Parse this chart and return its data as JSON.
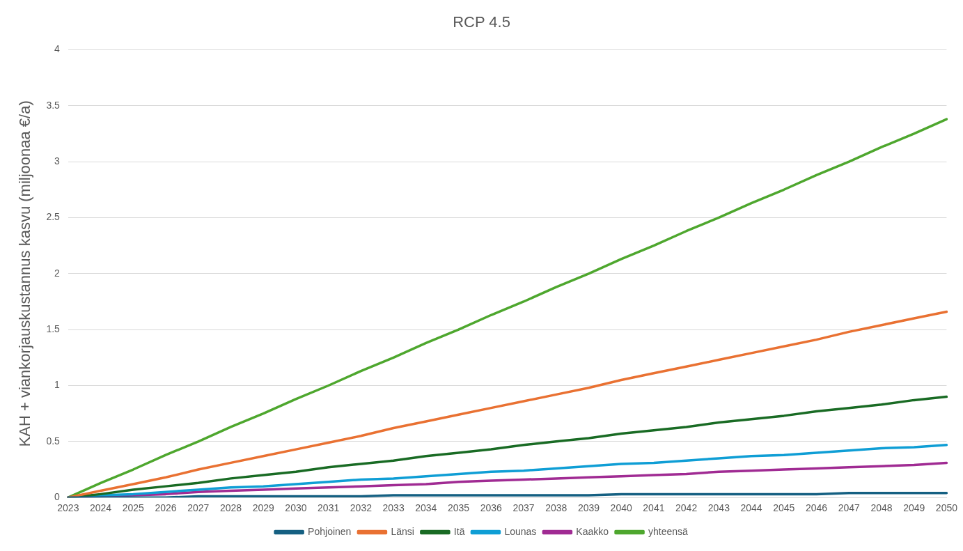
{
  "chart_data": {
    "type": "line",
    "title": "RCP 4.5",
    "ylabel": "KAH + viankorjauskustannus kasvu (miljoonaa €/a)",
    "categories": [
      "2023",
      "2024",
      "2025",
      "2026",
      "2027",
      "2028",
      "2029",
      "2030",
      "2031",
      "2032",
      "2033",
      "2034",
      "2035",
      "2036",
      "2037",
      "2038",
      "2039",
      "2040",
      "2041",
      "2042",
      "2043",
      "2044",
      "2045",
      "2046",
      "2047",
      "2048",
      "2049",
      "2050"
    ],
    "ylim": [
      0,
      4
    ],
    "yticks": [
      0,
      0.5,
      1,
      1.5,
      2,
      2.5,
      3,
      3.5,
      4
    ],
    "grid": "y",
    "legend": "bottom",
    "marker": "none",
    "line_style": "solid",
    "series": [
      {
        "name": "Pohjoinen",
        "color": "#156082",
        "values": [
          0,
          0,
          0,
          0,
          0.01,
          0.01,
          0.01,
          0.01,
          0.01,
          0.01,
          0.02,
          0.02,
          0.02,
          0.02,
          0.02,
          0.02,
          0.02,
          0.03,
          0.03,
          0.03,
          0.03,
          0.03,
          0.03,
          0.03,
          0.04,
          0.04,
          0.04,
          0.04
        ]
      },
      {
        "name": "Länsi",
        "color": "#e97132",
        "values": [
          0,
          0.06,
          0.12,
          0.18,
          0.25,
          0.31,
          0.37,
          0.43,
          0.49,
          0.55,
          0.62,
          0.68,
          0.74,
          0.8,
          0.86,
          0.92,
          0.98,
          1.05,
          1.11,
          1.17,
          1.23,
          1.29,
          1.35,
          1.41,
          1.48,
          1.54,
          1.6,
          1.66
        ]
      },
      {
        "name": "Itä",
        "color": "#196b24",
        "values": [
          0,
          0.03,
          0.07,
          0.1,
          0.13,
          0.17,
          0.2,
          0.23,
          0.27,
          0.3,
          0.33,
          0.37,
          0.4,
          0.43,
          0.47,
          0.5,
          0.53,
          0.57,
          0.6,
          0.63,
          0.67,
          0.7,
          0.73,
          0.77,
          0.8,
          0.83,
          0.87,
          0.9
        ]
      },
      {
        "name": "Lounas",
        "color": "#0f9ed5",
        "values": [
          0,
          0.02,
          0.03,
          0.05,
          0.07,
          0.09,
          0.1,
          0.12,
          0.14,
          0.16,
          0.17,
          0.19,
          0.21,
          0.23,
          0.24,
          0.26,
          0.28,
          0.3,
          0.31,
          0.33,
          0.35,
          0.37,
          0.38,
          0.4,
          0.42,
          0.44,
          0.45,
          0.47
        ]
      },
      {
        "name": "Kaakko",
        "color": "#a02b93",
        "values": [
          0,
          0.01,
          0.02,
          0.03,
          0.05,
          0.06,
          0.07,
          0.08,
          0.09,
          0.1,
          0.11,
          0.12,
          0.14,
          0.15,
          0.16,
          0.17,
          0.18,
          0.19,
          0.2,
          0.21,
          0.23,
          0.24,
          0.25,
          0.26,
          0.27,
          0.28,
          0.29,
          0.31
        ]
      },
      {
        "name": "yhteensä",
        "color": "#4ea72e",
        "values": [
          0,
          0.13,
          0.25,
          0.38,
          0.5,
          0.63,
          0.75,
          0.88,
          1,
          1.13,
          1.25,
          1.38,
          1.5,
          1.63,
          1.75,
          1.88,
          2,
          2.13,
          2.25,
          2.38,
          2.5,
          2.63,
          2.75,
          2.88,
          3,
          3.13,
          3.25,
          3.38
        ]
      }
    ]
  }
}
